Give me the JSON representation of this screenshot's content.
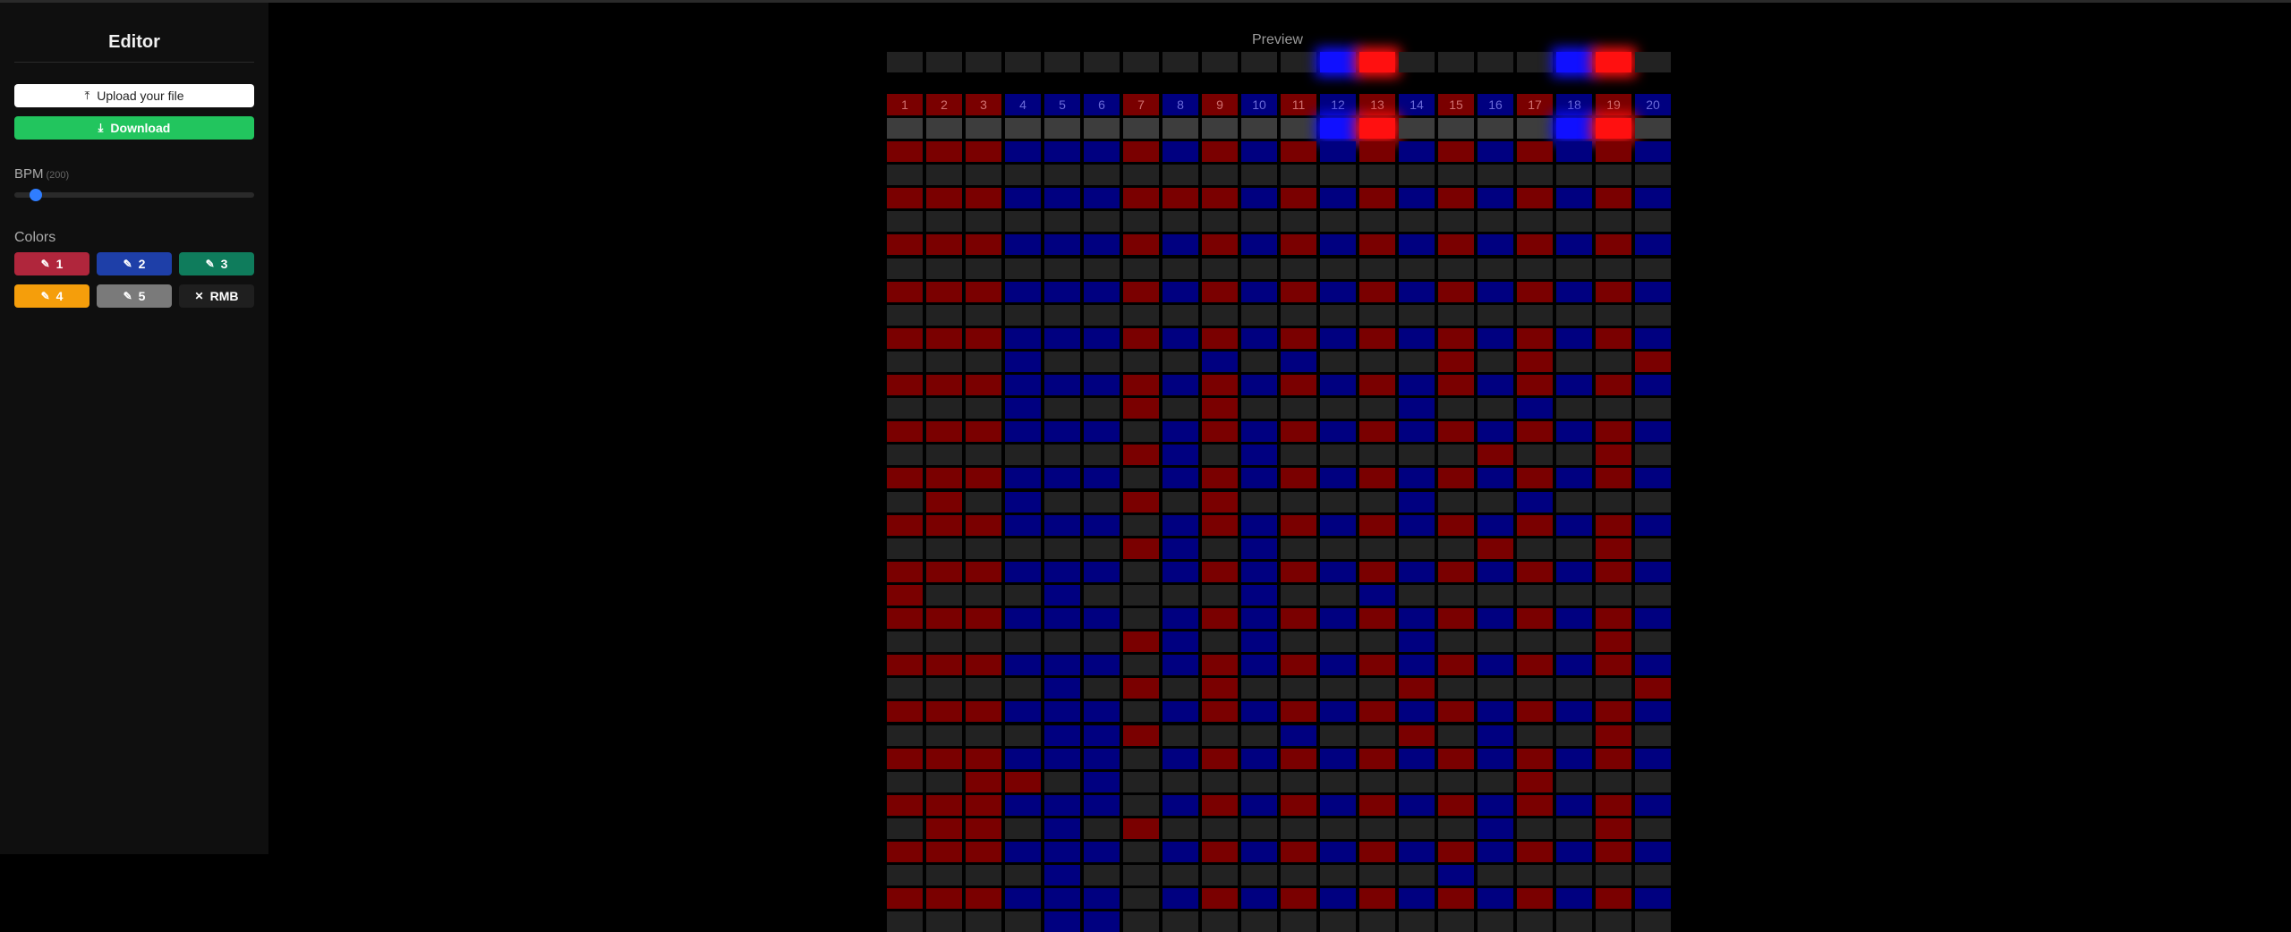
{
  "sidebar": {
    "title": "Editor",
    "upload_label": "Upload your file",
    "download_label": "Download",
    "bpm_label": "BPM",
    "bpm_value": "(200)",
    "bpm_slider_fraction": 0.09,
    "colors_label": "Colors",
    "color_buttons": [
      {
        "label": "1",
        "color": "#b0263c",
        "icon": "brush-icon"
      },
      {
        "label": "2",
        "color": "#1e3fa8",
        "icon": "brush-icon"
      },
      {
        "label": "3",
        "color": "#0f7c5c",
        "icon": "brush-icon"
      },
      {
        "label": "4",
        "color": "#f59e0b",
        "icon": "brush-icon"
      },
      {
        "label": "5",
        "color": "#7a7a7a",
        "icon": "brush-icon"
      },
      {
        "label": "RMB",
        "color": "#1f1f1f",
        "icon": "close-icon"
      }
    ]
  },
  "main": {
    "preview_label": "Preview",
    "preview_lit": {
      "12": "blue",
      "13": "red",
      "18": "blue",
      "19": "red"
    },
    "columns": [
      "1",
      "2",
      "3",
      "4",
      "5",
      "6",
      "7",
      "8",
      "9",
      "10",
      "11",
      "12",
      "13",
      "14",
      "15",
      "16",
      "17",
      "18",
      "19",
      "20"
    ],
    "column_colors": [
      "red",
      "red",
      "red",
      "blue",
      "blue",
      "blue",
      "red",
      "blue",
      "red",
      "blue",
      "red",
      "blue",
      "red",
      "blue",
      "red",
      "blue",
      "red",
      "blue",
      "red",
      "blue"
    ],
    "colors": {
      "red": "#7a0000",
      "blue": "#000080",
      "empty": "#222222",
      "cursor": "#3d3d3d",
      "red_lit": "#ff1010",
      "blue_lit": "#1010ff"
    },
    "pattern": [
      "RRRBBBRBRBRBRBRBRBRB",
      "....................",
      "RRRBBBRRRBRBRBRBRBRB",
      "....................",
      "RRRBBBRBRBRBRBRBRBRB",
      "....................",
      "RRRBBBRBRBRBRBRBRBRB",
      "....................",
      "RRRBBBRBRBRBRBRBRBRB",
      "...B....B.B...R.R..R",
      "RRRBBBRBRBRBRBRBRBRB",
      "...B..R.R....B..B...",
      "RRRBBB.BRBRBRBRBRBRB",
      "......RB.B.....R..R.",
      "RRRBBB.BRBRBRBRBRBRB",
      ".R.B..R.R....B..B...",
      "RRRBBB.BRBRBRBRBRBRB",
      "......RB.B.....R..R.",
      "RRRBBB.BRBRBRBRBRBRB",
      "R...B....B..B.......",
      "RRRBBB.BRBRBRBRBRBRB",
      "......RB.B...B....R.",
      "RRRBBB.BRBRBRBRBRBRB",
      "....B.R.R....R.....R",
      "RRRBBB.BRBRBRBRBRBRB",
      "....BBR...B..R.B..R.",
      "RRRBBB.BRBRBRBRBRBRB",
      "..RR.B..........R...",
      "RRRBBB.BRBRBRBRBRBRB",
      ".RR.B.R........B..R.",
      "RRRBBB.BRBRBRBRBRBRB",
      "....B.........B.....",
      "RRRBBB.BRBRBRBRBRBRB",
      "....BB.............."
    ]
  }
}
